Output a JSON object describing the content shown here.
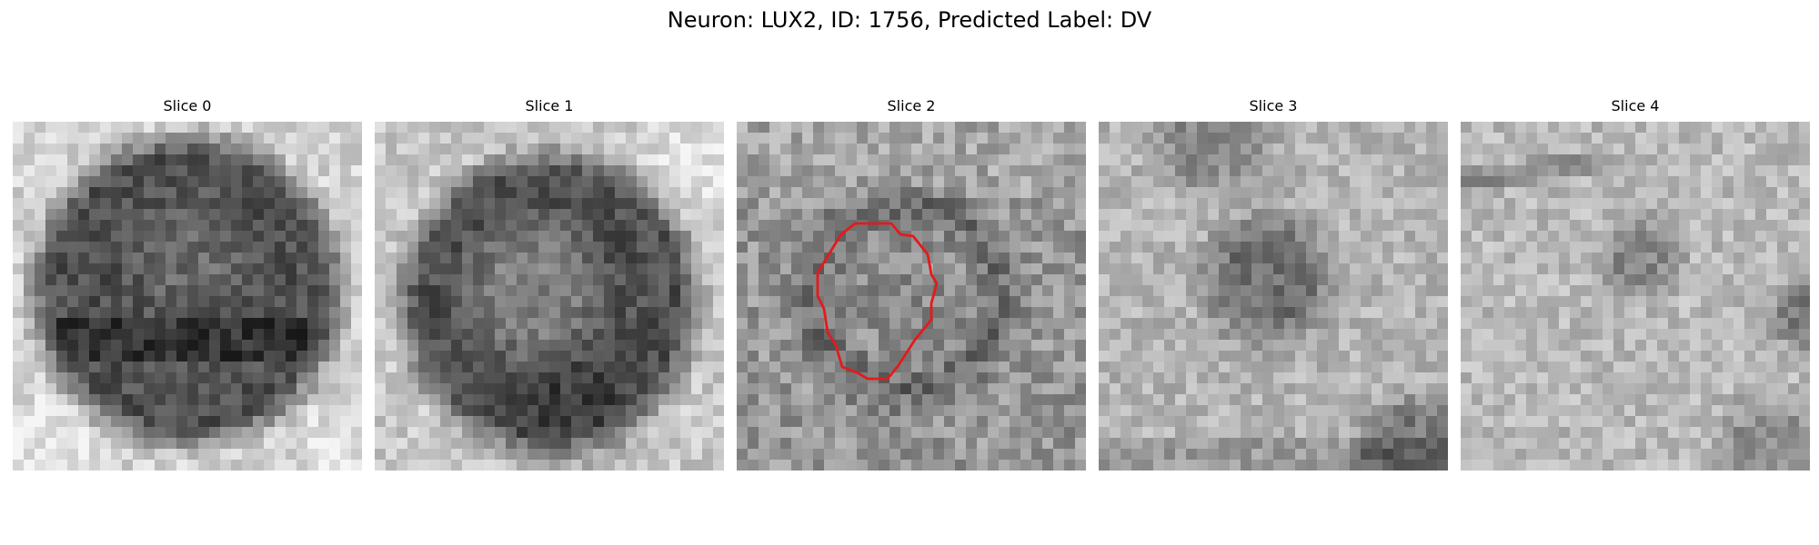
{
  "suptitle": "Neuron: LUX2, ID: 1756, Predicted Label: DV",
  "colors": {
    "background": "#ffffff",
    "text": "#000000",
    "roi_outline": "#e41a1c"
  },
  "slices": [
    {
      "title": "Slice 0",
      "image": "grayscale microscopy patch: large dark round cell body filling the frame, bright tissue at the bottom corners"
    },
    {
      "title": "Slice 1",
      "image": "grayscale microscopy patch: dark round cell with lighter core, bright tissue in the upper right corner"
    },
    {
      "title": "Slice 2",
      "image": "grayscale microscopy patch: mottled gray with a dark cell ring at center",
      "roi_outline": true
    },
    {
      "title": "Slice 3",
      "image": "grayscale microscopy patch: mostly bright tissue with a dark irregular blob at center, dark region bottom right"
    },
    {
      "title": "Slice 4",
      "image": "grayscale microscopy patch: bright noisy tissue with dark streaks upper left and a dark spot at right"
    }
  ]
}
